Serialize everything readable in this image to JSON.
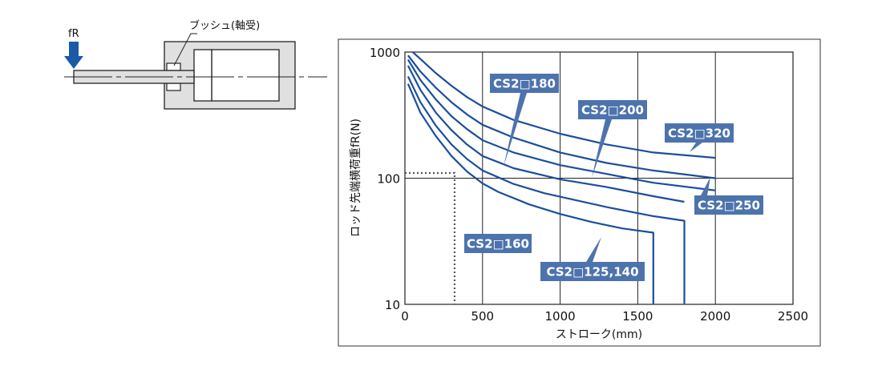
{
  "diagram": {
    "force_label": "fR",
    "bushing_label": "ブッシュ(軸受)"
  },
  "chart_data": {
    "type": "line",
    "xlabel": "ストローク(mm)",
    "ylabel": "ロッド先端横荷重fR(N)",
    "x_ticks": [
      "0",
      "500",
      "1000",
      "1500",
      "2000",
      "2500"
    ],
    "y_ticks": [
      "10",
      "100",
      "1000"
    ],
    "xlim": [
      0,
      2500
    ],
    "ylim": [
      10,
      1000
    ],
    "y_scale": "log",
    "grid": true,
    "line_color": "#1a4f9c",
    "label_fill": "#4d73ad",
    "reference": {
      "x": 320,
      "y": 110,
      "style": "dotted"
    },
    "series": [
      {
        "name": "CS2□125,140",
        "points": [
          [
            20,
            560
          ],
          [
            100,
            330
          ],
          [
            200,
            215
          ],
          [
            300,
            150
          ],
          [
            400,
            113
          ],
          [
            500,
            91
          ],
          [
            600,
            78
          ],
          [
            800,
            62
          ],
          [
            1000,
            52
          ],
          [
            1200,
            45
          ],
          [
            1400,
            40
          ],
          [
            1600,
            37
          ]
        ],
        "drop_to": 10
      },
      {
        "name": "CS2□160",
        "points": [
          [
            20,
            640
          ],
          [
            100,
            400
          ],
          [
            200,
            260
          ],
          [
            300,
            185
          ],
          [
            400,
            142
          ],
          [
            500,
            115
          ],
          [
            700,
            90
          ],
          [
            900,
            76
          ],
          [
            1100,
            67
          ],
          [
            1300,
            59
          ],
          [
            1600,
            50
          ],
          [
            1800,
            46
          ]
        ],
        "drop_to": 10
      },
      {
        "name": "CS2□180",
        "points": [
          [
            20,
            780
          ],
          [
            100,
            500
          ],
          [
            200,
            330
          ],
          [
            300,
            240
          ],
          [
            400,
            185
          ],
          [
            500,
            150
          ],
          [
            700,
            120
          ],
          [
            1000,
            98
          ],
          [
            1300,
            85
          ],
          [
            1600,
            72
          ],
          [
            1800,
            65
          ]
        ]
      },
      {
        "name": "CS2□200",
        "points": [
          [
            20,
            870
          ],
          [
            100,
            600
          ],
          [
            200,
            420
          ],
          [
            300,
            310
          ],
          [
            400,
            245
          ],
          [
            500,
            200
          ],
          [
            700,
            160
          ],
          [
            1000,
            127
          ],
          [
            1300,
            108
          ],
          [
            1600,
            92
          ],
          [
            2000,
            80
          ]
        ]
      },
      {
        "name": "CS2□250",
        "points": [
          [
            20,
            940
          ],
          [
            100,
            700
          ],
          [
            200,
            520
          ],
          [
            300,
            400
          ],
          [
            400,
            320
          ],
          [
            500,
            265
          ],
          [
            700,
            210
          ],
          [
            1000,
            160
          ],
          [
            1300,
            132
          ],
          [
            1600,
            115
          ],
          [
            2000,
            100
          ]
        ]
      },
      {
        "name": "CS2□320",
        "points": [
          [
            50,
            1000
          ],
          [
            100,
            880
          ],
          [
            200,
            680
          ],
          [
            300,
            540
          ],
          [
            400,
            440
          ],
          [
            500,
            370
          ],
          [
            700,
            290
          ],
          [
            1000,
            225
          ],
          [
            1300,
            185
          ],
          [
            1600,
            160
          ],
          [
            2000,
            145
          ]
        ]
      }
    ]
  }
}
